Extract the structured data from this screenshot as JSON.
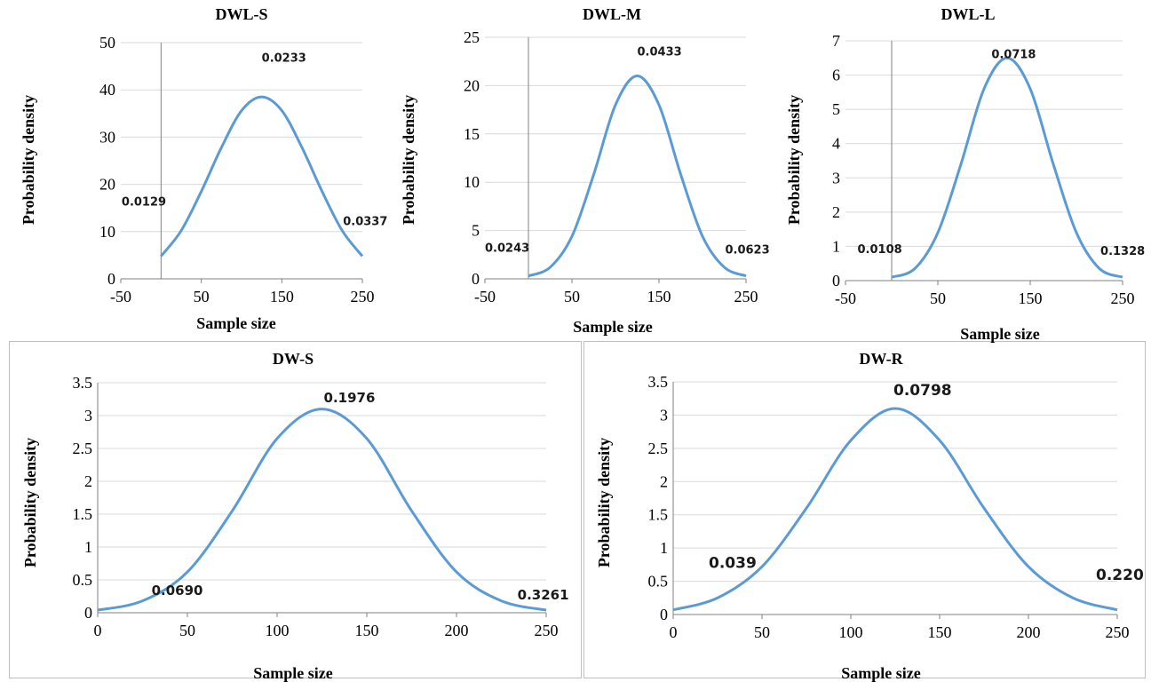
{
  "charts": [
    {
      "type": "line",
      "title": "DWL-S",
      "xlabel": "Sample size",
      "ylabel": "Probability density",
      "xlim": [
        -50,
        250
      ],
      "ylim": [
        0,
        50
      ],
      "xticks": [
        -50,
        50,
        150,
        250
      ],
      "yticks": [
        0,
        10,
        20,
        30,
        40,
        50
      ],
      "grid": "horizontal",
      "series": [
        {
          "color": "#5b9bd5",
          "x": [
            0,
            25,
            50,
            75,
            100,
            125,
            150,
            175,
            200,
            225,
            250
          ],
          "y": [
            4.8,
            10.2,
            18.5,
            27.8,
            35.6,
            38.5,
            35.6,
            27.8,
            18.5,
            10.2,
            4.8
          ]
        }
      ],
      "annotations": [
        {
          "text": "0.0233",
          "x": 125,
          "y": 46
        },
        {
          "text": "0.0129",
          "x": -49,
          "y": 15.5
        },
        {
          "text": "0.0337",
          "x": 226,
          "y": 11.4
        }
      ]
    },
    {
      "type": "line",
      "title": "DWL-M",
      "xlabel": "Sample size",
      "ylabel": "Probability density",
      "xlim": [
        -50,
        250
      ],
      "ylim": [
        0,
        25
      ],
      "xticks": [
        -50,
        50,
        150,
        250
      ],
      "yticks": [
        0,
        5,
        10,
        15,
        20,
        25
      ],
      "grid": "horizontal",
      "series": [
        {
          "color": "#5b9bd5",
          "x": [
            0,
            25,
            50,
            75,
            100,
            125,
            150,
            175,
            200,
            225,
            250
          ],
          "y": [
            0.3,
            1.2,
            4.4,
            10.8,
            18.0,
            21.0,
            18.0,
            10.8,
            4.4,
            1.2,
            0.3
          ]
        }
      ],
      "annotations": [
        {
          "text": "0.0433",
          "x": 125,
          "y": 23.1
        },
        {
          "text": "0.0243",
          "x": -50,
          "y": 2.8
        },
        {
          "text": "0.0623",
          "x": 226,
          "y": 2.6
        }
      ]
    },
    {
      "type": "line",
      "title": "DWL-L",
      "xlabel": "Sample size",
      "ylabel": "Probability density",
      "xlim": [
        -50,
        250
      ],
      "ylim": [
        0,
        7
      ],
      "xticks": [
        -50,
        50,
        150,
        250
      ],
      "yticks": [
        0,
        1,
        2,
        3,
        4,
        5,
        6,
        7
      ],
      "grid": "horizontal",
      "series": [
        {
          "color": "#5b9bd5",
          "x": [
            0,
            25,
            50,
            75,
            100,
            125,
            150,
            175,
            200,
            225,
            250
          ],
          "y": [
            0.1,
            0.35,
            1.4,
            3.4,
            5.6,
            6.5,
            5.6,
            3.4,
            1.4,
            0.35,
            0.1
          ]
        }
      ],
      "annotations": [
        {
          "text": "0.0718",
          "x": 108,
          "y": 6.5
        },
        {
          "text": "0.0108",
          "x": -37,
          "y": 0.8
        },
        {
          "text": "0.1328",
          "x": 226,
          "y": 0.75
        }
      ]
    },
    {
      "type": "line",
      "title": "DW-S",
      "xlabel": "Sample size",
      "ylabel": "Probability density",
      "xlim": [
        0,
        250
      ],
      "ylim": [
        0,
        3.5
      ],
      "xticks": [
        0,
        50,
        100,
        150,
        200,
        250
      ],
      "yticks": [
        0,
        0.5,
        1,
        1.5,
        2,
        2.5,
        3,
        3.5
      ],
      "grid": "horizontal",
      "series": [
        {
          "color": "#5b9bd5",
          "x": [
            0,
            25,
            50,
            75,
            100,
            125,
            150,
            175,
            200,
            225,
            250
          ],
          "y": [
            0.04,
            0.18,
            0.62,
            1.55,
            2.65,
            3.1,
            2.65,
            1.55,
            0.62,
            0.18,
            0.04
          ]
        }
      ],
      "annotations": [
        {
          "text": "0.1976",
          "x": 126,
          "y": 3.2
        },
        {
          "text": "0.0690",
          "x": 30,
          "y": 0.27
        },
        {
          "text": "0.3261",
          "x": 234,
          "y": 0.2
        }
      ]
    },
    {
      "type": "line",
      "title": "DW-R",
      "xlabel": "Sample size",
      "ylabel": "Probability density",
      "xlim": [
        0,
        250
      ],
      "ylim": [
        0,
        3.5
      ],
      "xticks": [
        0,
        50,
        100,
        150,
        200,
        250
      ],
      "yticks": [
        0,
        0.5,
        1,
        1.5,
        2,
        2.5,
        3,
        3.5
      ],
      "grid": "horizontal",
      "series": [
        {
          "color": "#5b9bd5",
          "x": [
            0,
            25,
            50,
            75,
            100,
            125,
            150,
            175,
            200,
            225,
            250
          ],
          "y": [
            0.07,
            0.25,
            0.72,
            1.6,
            2.62,
            3.1,
            2.62,
            1.6,
            0.72,
            0.25,
            0.07
          ]
        }
      ],
      "annotations": [
        {
          "text": "0.0798",
          "x": 124,
          "y": 3.3
        },
        {
          "text": "0.039",
          "x": 20,
          "y": 0.7
        },
        {
          "text": "0.220",
          "x": 238,
          "y": 0.52
        }
      ]
    }
  ]
}
